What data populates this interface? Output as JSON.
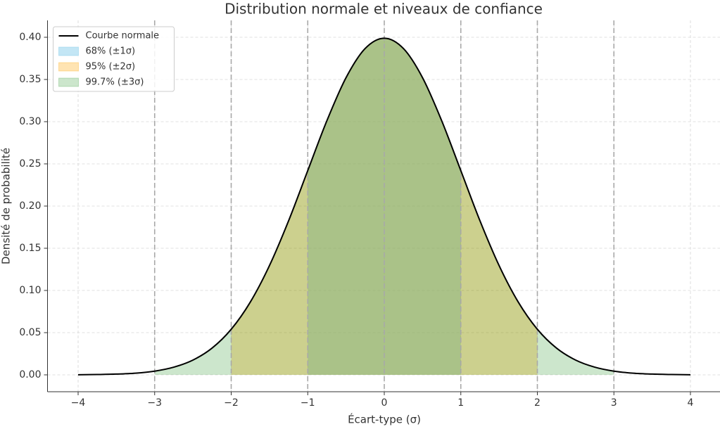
{
  "chart_data": {
    "type": "line",
    "title": "Distribution normale et niveaux de confiance",
    "x_label": "Écart-type (σ)",
    "y_label": "Densité de probabilité",
    "x": [
      -4,
      -3.75,
      -3.5,
      -3.25,
      -3,
      -2.75,
      -2.5,
      -2.25,
      -2,
      -1.75,
      -1.5,
      -1.25,
      -1,
      -0.75,
      -0.5,
      -0.25,
      0,
      0.25,
      0.5,
      0.75,
      1,
      1.25,
      1.5,
      1.75,
      2,
      2.25,
      2.5,
      2.75,
      3,
      3.25,
      3.5,
      3.75,
      4
    ],
    "series": [
      {
        "name": "Courbe normale",
        "color": "#000000",
        "values": [
          0.0001,
          0.0004,
          0.0009,
          0.002,
          0.0044,
          0.0091,
          0.0175,
          0.0317,
          0.054,
          0.0863,
          0.1295,
          0.1826,
          0.242,
          0.3011,
          0.3521,
          0.3867,
          0.3989,
          0.3867,
          0.3521,
          0.3011,
          0.242,
          0.1826,
          0.1295,
          0.0863,
          0.054,
          0.0317,
          0.0175,
          0.0091,
          0.0044,
          0.002,
          0.0009,
          0.0004,
          0.0001
        ]
      }
    ],
    "bands": [
      {
        "name": "68% (±1σ)",
        "color": "#87ceeb",
        "opacity": 0.5,
        "range": [
          -1,
          1
        ]
      },
      {
        "name": "95% (±2σ)",
        "color": "#ffa500",
        "opacity": 0.3,
        "range": [
          -2,
          2
        ]
      },
      {
        "name": "99.7% (±3σ)",
        "color": "#008000",
        "opacity": 0.2,
        "range": [
          -3,
          3
        ]
      }
    ],
    "vlines": [
      -3,
      -2,
      -1,
      0,
      1,
      2,
      3
    ],
    "xlim": [
      -4.4,
      4.4
    ],
    "ylim": [
      -0.02,
      0.42
    ],
    "xticks": [
      {
        "value": -4,
        "label": "−4"
      },
      {
        "value": -3,
        "label": "−3"
      },
      {
        "value": -2,
        "label": "−2"
      },
      {
        "value": -1,
        "label": "−1"
      },
      0,
      1,
      2,
      3,
      4
    ],
    "yticks": [
      {
        "value": 0,
        "label": "0.00"
      },
      {
        "value": 0.05,
        "label": "0.05"
      },
      {
        "value": 0.1,
        "label": "0.10"
      },
      {
        "value": 0.15,
        "label": "0.15"
      },
      {
        "value": 0.2,
        "label": "0.20"
      },
      {
        "value": 0.25,
        "label": "0.25"
      },
      {
        "value": 0.3,
        "label": "0.30"
      },
      {
        "value": 0.35,
        "label": "0.35"
      },
      {
        "value": 0.4,
        "label": "0.40"
      }
    ],
    "grid": true,
    "legend": "upper left"
  }
}
